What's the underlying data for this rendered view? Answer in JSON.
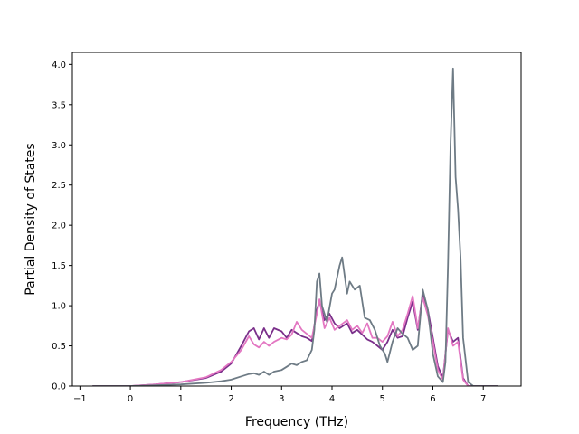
{
  "chart_data": {
    "type": "line",
    "title": "",
    "xlabel": "Frequency (THz)",
    "ylabel": "Partial Density of States",
    "xlim": [
      -1.15,
      7.75
    ],
    "ylim": [
      0.0,
      4.15
    ],
    "xticks": [
      -1,
      0,
      1,
      2,
      3,
      4,
      5,
      6,
      7
    ],
    "xtick_labels": [
      "−1",
      "0",
      "1",
      "2",
      "3",
      "4",
      "5",
      "6",
      "7"
    ],
    "yticks": [
      0.0,
      0.5,
      1.0,
      1.5,
      2.0,
      2.5,
      3.0,
      3.5,
      4.0
    ],
    "ytick_labels": [
      "0.0",
      "0.5",
      "1.0",
      "1.5",
      "2.0",
      "2.5",
      "3.0",
      "3.5",
      "4.0"
    ],
    "grid": false,
    "legend": "none",
    "series": [
      {
        "color": "#7a2f8a",
        "x": [
          -0.75,
          0,
          0.5,
          1.0,
          1.5,
          1.8,
          2.0,
          2.2,
          2.35,
          2.45,
          2.55,
          2.65,
          2.75,
          2.85,
          3.0,
          3.1,
          3.2,
          3.3,
          3.4,
          3.5,
          3.6,
          3.7,
          3.75,
          3.85,
          3.95,
          4.05,
          4.15,
          4.3,
          4.4,
          4.5,
          4.6,
          4.7,
          4.8,
          4.9,
          5.0,
          5.1,
          5.2,
          5.3,
          5.4,
          5.5,
          5.6,
          5.7,
          5.8,
          5.9,
          6.0,
          6.1,
          6.2,
          6.3,
          6.4,
          6.5,
          6.6,
          6.7,
          6.8,
          7.3
        ],
        "y": [
          0,
          0,
          0.02,
          0.05,
          0.1,
          0.18,
          0.28,
          0.5,
          0.68,
          0.72,
          0.58,
          0.72,
          0.6,
          0.72,
          0.68,
          0.6,
          0.7,
          0.66,
          0.62,
          0.6,
          0.56,
          0.95,
          1.05,
          0.82,
          0.9,
          0.78,
          0.72,
          0.78,
          0.66,
          0.7,
          0.64,
          0.58,
          0.55,
          0.5,
          0.45,
          0.55,
          0.7,
          0.6,
          0.62,
          0.85,
          1.05,
          0.7,
          1.15,
          0.95,
          0.6,
          0.25,
          0.1,
          0.7,
          0.55,
          0.6,
          0.1,
          0,
          0,
          0
        ]
      },
      {
        "color": "#e377c2",
        "x": [
          -0.75,
          0,
          0.5,
          1.0,
          1.5,
          1.8,
          2.0,
          2.2,
          2.35,
          2.45,
          2.55,
          2.65,
          2.75,
          2.85,
          3.0,
          3.1,
          3.2,
          3.3,
          3.4,
          3.5,
          3.6,
          3.7,
          3.75,
          3.85,
          3.95,
          4.05,
          4.15,
          4.3,
          4.4,
          4.5,
          4.6,
          4.7,
          4.8,
          4.9,
          5.0,
          5.1,
          5.2,
          5.3,
          5.4,
          5.5,
          5.6,
          5.7,
          5.8,
          5.9,
          6.0,
          6.1,
          6.2,
          6.3,
          6.4,
          6.5,
          6.6,
          6.7,
          6.8,
          7.3
        ],
        "y": [
          0,
          0,
          0.02,
          0.05,
          0.11,
          0.2,
          0.3,
          0.45,
          0.62,
          0.52,
          0.48,
          0.55,
          0.5,
          0.55,
          0.6,
          0.58,
          0.64,
          0.8,
          0.7,
          0.65,
          0.6,
          0.9,
          1.08,
          0.72,
          0.85,
          0.7,
          0.75,
          0.82,
          0.7,
          0.75,
          0.66,
          0.78,
          0.6,
          0.6,
          0.55,
          0.62,
          0.8,
          0.62,
          0.7,
          0.9,
          1.12,
          0.72,
          1.1,
          0.88,
          0.55,
          0.2,
          0.08,
          0.72,
          0.5,
          0.55,
          0.08,
          0,
          0,
          0
        ]
      },
      {
        "color": "#6e7b85",
        "x": [
          -0.75,
          0,
          0.5,
          1.0,
          1.5,
          1.8,
          2.0,
          2.2,
          2.35,
          2.45,
          2.55,
          2.65,
          2.75,
          2.85,
          3.0,
          3.1,
          3.2,
          3.3,
          3.4,
          3.5,
          3.6,
          3.65,
          3.7,
          3.75,
          3.8,
          3.9,
          4.0,
          4.05,
          4.15,
          4.2,
          4.3,
          4.35,
          4.45,
          4.55,
          4.65,
          4.75,
          4.85,
          4.95,
          5.05,
          5.1,
          5.2,
          5.3,
          5.4,
          5.5,
          5.6,
          5.7,
          5.8,
          5.9,
          6.0,
          6.1,
          6.2,
          6.25,
          6.3,
          6.35,
          6.4,
          6.45,
          6.5,
          6.55,
          6.6,
          6.7,
          6.8,
          7.3
        ],
        "y": [
          0,
          0,
          0.01,
          0.02,
          0.04,
          0.06,
          0.08,
          0.12,
          0.15,
          0.16,
          0.14,
          0.18,
          0.14,
          0.18,
          0.2,
          0.24,
          0.28,
          0.26,
          0.3,
          0.32,
          0.45,
          0.7,
          1.3,
          1.4,
          1.0,
          0.8,
          1.15,
          1.2,
          1.5,
          1.6,
          1.15,
          1.3,
          1.2,
          1.25,
          0.85,
          0.82,
          0.7,
          0.5,
          0.4,
          0.3,
          0.55,
          0.72,
          0.65,
          0.6,
          0.45,
          0.5,
          1.2,
          0.95,
          0.4,
          0.12,
          0.05,
          0.3,
          1.5,
          3.0,
          3.95,
          2.6,
          2.2,
          1.6,
          0.6,
          0.05,
          0,
          0
        ]
      }
    ]
  }
}
